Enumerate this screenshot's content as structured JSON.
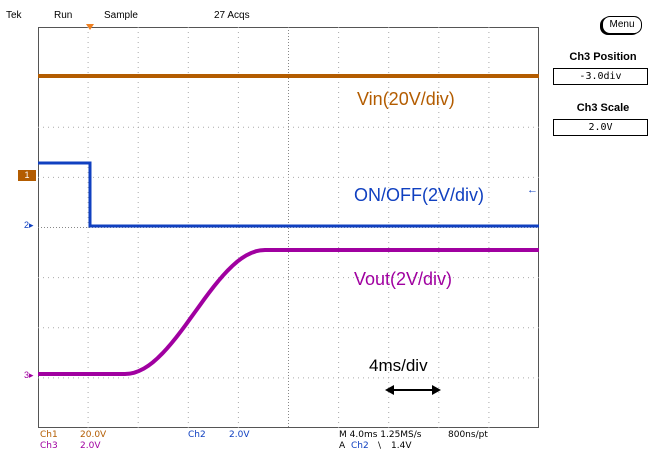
{
  "status_bar": {
    "brand": "Tek",
    "run_state": "Run",
    "acq_mode": "Sample",
    "acq_count": "27 Acqs"
  },
  "side_menu": {
    "menu_label": "Menu",
    "ch3_position_title": "Ch3 Position",
    "ch3_position_value": "-3.0div",
    "ch3_scale_title": "Ch3 Scale",
    "ch3_scale_value": "2.0V"
  },
  "traces": {
    "vin_label": "Vin(20V/div)",
    "onoff_label": "ON/OFF(2V/div)",
    "vout_label": "Vout(2V/div)",
    "timebase_annotation": "4ms/div"
  },
  "channel_markers": {
    "ch1": "1",
    "ch2": "2",
    "ch3": "3"
  },
  "readouts": {
    "ch1_name": "Ch1",
    "ch1_scale": "20.0V",
    "ch3_name": "Ch3",
    "ch3_scale": "2.0V",
    "ch2_name": "Ch2",
    "ch2_scale": "2.0V",
    "horizontal": "M 4.0ms 1.25MS/s",
    "record": "800ns/pt",
    "trigger_prefix": "A",
    "trigger_source": "Ch2",
    "trigger_slope": "\\",
    "trigger_level": "1.4V"
  },
  "colors": {
    "vin": "#b35c00",
    "onoff": "#1040c0",
    "vout": "#a000a0",
    "trigger_marker": "#f08020"
  }
}
